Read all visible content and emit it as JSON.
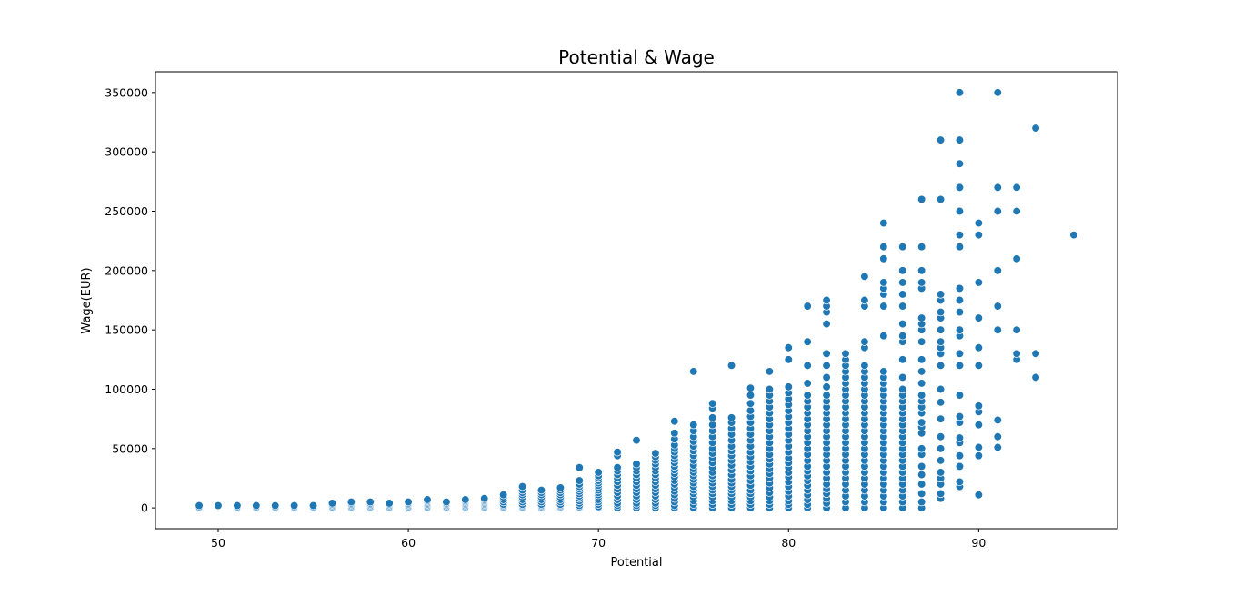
{
  "chart_data": {
    "type": "scatter",
    "title": "Potential & Wage",
    "xlabel": "Potential",
    "ylabel": "Wage(EUR)",
    "xlim": [
      46.7,
      97.3
    ],
    "ylim": [
      -17500,
      367500
    ],
    "xticks": [
      50,
      60,
      70,
      80,
      90
    ],
    "yticks": [
      0,
      50000,
      100000,
      150000,
      200000,
      250000,
      300000,
      350000
    ],
    "grid": false,
    "marker_color": "#1f77b4",
    "marker_edge_color": "#ffffff",
    "columns": [
      {
        "x": 49,
        "y": [
          0,
          1000,
          2000
        ]
      },
      {
        "x": 50,
        "y": [
          2000
        ]
      },
      {
        "x": 51,
        "y": [
          0,
          1000,
          2000
        ]
      },
      {
        "x": 52,
        "y": [
          0,
          1000,
          2000
        ]
      },
      {
        "x": 53,
        "y": [
          0,
          1000,
          2000
        ]
      },
      {
        "x": 54,
        "y": [
          0,
          1000,
          2000
        ]
      },
      {
        "x": 55,
        "y": [
          0,
          1000,
          2000
        ]
      },
      {
        "x": 56,
        "y": [
          0,
          1000,
          2000,
          3000,
          4000
        ]
      },
      {
        "x": 57,
        "y": [
          0,
          1000,
          2000,
          3000,
          4000,
          5000
        ]
      },
      {
        "x": 58,
        "y": [
          0,
          1000,
          2000,
          3000,
          4000,
          5000
        ]
      },
      {
        "x": 59,
        "y": [
          0,
          1000,
          2000,
          3000,
          4000
        ]
      },
      {
        "x": 60,
        "y": [
          0,
          1000,
          2000,
          3000,
          4000,
          5000
        ]
      },
      {
        "x": 61,
        "y": [
          0,
          1000,
          2000,
          3000,
          4000,
          5000,
          6000,
          7000
        ]
      },
      {
        "x": 62,
        "y": [
          0,
          1000,
          2000,
          3000,
          4000,
          5000
        ]
      },
      {
        "x": 63,
        "y": [
          0,
          1000,
          2000,
          3000,
          4000,
          5000,
          6000,
          7000
        ]
      },
      {
        "x": 64,
        "y": [
          0,
          1000,
          2000,
          3000,
          4000,
          5000,
          6000,
          7000,
          8000
        ]
      },
      {
        "x": 65,
        "y": [
          0,
          1000,
          2000,
          3000,
          5000,
          7000,
          9000,
          11000
        ]
      },
      {
        "x": 66,
        "y": [
          0,
          1000,
          2000,
          3000,
          5000,
          7000,
          9000,
          11000,
          13000,
          15000,
          18000
        ]
      },
      {
        "x": 67,
        "y": [
          0,
          1000,
          2000,
          3000,
          5000,
          7000,
          9000,
          11000,
          13000,
          15000
        ]
      },
      {
        "x": 68,
        "y": [
          0,
          1000,
          2000,
          3000,
          5000,
          7000,
          9000,
          11000,
          13000,
          15000,
          17000
        ]
      },
      {
        "x": 69,
        "y": [
          0,
          1000,
          2000,
          4000,
          6000,
          8000,
          10000,
          12000,
          14000,
          16000,
          18000,
          20000,
          23000,
          34000
        ]
      },
      {
        "x": 70,
        "y": [
          0,
          1000,
          3000,
          5000,
          7000,
          9000,
          11000,
          13000,
          15000,
          17000,
          19000,
          21000,
          23000,
          25000,
          27000,
          30000
        ]
      },
      {
        "x": 71,
        "y": [
          0,
          2000,
          4000,
          7000,
          10000,
          13000,
          16000,
          19000,
          22000,
          25000,
          28000,
          31000,
          34000,
          44000,
          47000
        ]
      },
      {
        "x": 72,
        "y": [
          0,
          2000,
          4000,
          7000,
          10000,
          13000,
          16000,
          19000,
          22000,
          25000,
          28000,
          31000,
          34000,
          37000,
          57000
        ]
      },
      {
        "x": 73,
        "y": [
          0,
          2000,
          4000,
          7000,
          10000,
          13000,
          16000,
          19000,
          22000,
          25000,
          28000,
          31000,
          34000,
          37000,
          40000,
          43000,
          46000
        ]
      },
      {
        "x": 74,
        "y": [
          0,
          2000,
          5000,
          8000,
          11000,
          14000,
          17000,
          20000,
          23000,
          26000,
          29000,
          32000,
          35000,
          38000,
          41000,
          44000,
          47000,
          50000,
          53000,
          58000,
          63000,
          73000
        ]
      },
      {
        "x": 75,
        "y": [
          0,
          3000,
          6000,
          9000,
          12000,
          15000,
          18000,
          21000,
          24000,
          27000,
          30000,
          33000,
          36000,
          40000,
          44000,
          48000,
          52000,
          56000,
          60000,
          65000,
          70000,
          115000
        ]
      },
      {
        "x": 76,
        "y": [
          0,
          3000,
          6000,
          9000,
          12000,
          15000,
          18000,
          21000,
          24000,
          27000,
          30000,
          34000,
          38000,
          42000,
          46000,
          50000,
          55000,
          60000,
          65000,
          70000,
          76000,
          84000,
          88000
        ]
      },
      {
        "x": 77,
        "y": [
          0,
          3000,
          6000,
          9000,
          12000,
          15000,
          18000,
          21000,
          24000,
          28000,
          32000,
          36000,
          40000,
          44000,
          48000,
          52000,
          57000,
          62000,
          67000,
          72000,
          76000,
          120000
        ]
      },
      {
        "x": 78,
        "y": [
          0,
          3000,
          6000,
          9000,
          12000,
          15000,
          19000,
          23000,
          27000,
          31000,
          35000,
          39000,
          43000,
          47000,
          52000,
          57000,
          62000,
          67000,
          72000,
          77000,
          82000,
          88000,
          95000,
          101000
        ]
      },
      {
        "x": 79,
        "y": [
          0,
          3000,
          6000,
          9000,
          13000,
          17000,
          21000,
          25000,
          29000,
          33000,
          37000,
          41000,
          45000,
          50000,
          55000,
          60000,
          65000,
          70000,
          75000,
          80000,
          85000,
          90000,
          95000,
          100000,
          115000
        ]
      },
      {
        "x": 80,
        "y": [
          0,
          3000,
          6000,
          10000,
          14000,
          18000,
          22000,
          26000,
          30000,
          34000,
          38000,
          42000,
          47000,
          52000,
          57000,
          62000,
          67000,
          72000,
          77000,
          82000,
          87000,
          92000,
          97000,
          102000,
          125000,
          135000
        ]
      },
      {
        "x": 81,
        "y": [
          0,
          3000,
          7000,
          11000,
          15000,
          19000,
          23000,
          27000,
          31000,
          35000,
          40000,
          45000,
          50000,
          55000,
          60000,
          65000,
          70000,
          75000,
          80000,
          85000,
          90000,
          95000,
          105000,
          120000,
          140000,
          170000
        ]
      },
      {
        "x": 82,
        "y": [
          0,
          4000,
          8000,
          12000,
          16000,
          20000,
          25000,
          30000,
          35000,
          40000,
          45000,
          50000,
          55000,
          60000,
          65000,
          70000,
          75000,
          80000,
          85000,
          90000,
          95000,
          102000,
          110000,
          120000,
          130000,
          155000,
          165000,
          170000,
          175000
        ]
      },
      {
        "x": 83,
        "y": [
          0,
          5000,
          10000,
          15000,
          20000,
          25000,
          30000,
          35000,
          40000,
          45000,
          50000,
          55000,
          60000,
          65000,
          70000,
          75000,
          80000,
          85000,
          90000,
          95000,
          100000,
          105000,
          110000,
          115000,
          120000,
          125000,
          130000
        ]
      },
      {
        "x": 84,
        "y": [
          0,
          5000,
          10000,
          15000,
          20000,
          25000,
          30000,
          35000,
          40000,
          45000,
          50000,
          55000,
          60000,
          65000,
          70000,
          75000,
          80000,
          85000,
          90000,
          95000,
          100000,
          105000,
          110000,
          115000,
          120000,
          135000,
          140000,
          170000,
          175000,
          195000
        ]
      },
      {
        "x": 85,
        "y": [
          0,
          5000,
          10000,
          15000,
          20000,
          25000,
          30000,
          35000,
          40000,
          45000,
          50000,
          55000,
          60000,
          65000,
          70000,
          75000,
          80000,
          85000,
          90000,
          95000,
          100000,
          105000,
          110000,
          115000,
          145000,
          170000,
          180000,
          185000,
          190000,
          210000,
          220000,
          240000
        ]
      },
      {
        "x": 86,
        "y": [
          0,
          5000,
          10000,
          15000,
          20000,
          25000,
          30000,
          35000,
          40000,
          45000,
          50000,
          55000,
          60000,
          65000,
          70000,
          75000,
          80000,
          85000,
          90000,
          95000,
          100000,
          110000,
          125000,
          140000,
          145000,
          155000,
          170000,
          180000,
          190000,
          200000,
          220000
        ]
      },
      {
        "x": 87,
        "y": [
          0,
          5000,
          12000,
          20000,
          28000,
          35000,
          45000,
          50000,
          63000,
          68000,
          72000,
          80000,
          85000,
          90000,
          95000,
          105000,
          115000,
          125000,
          140000,
          150000,
          155000,
          160000,
          185000,
          190000,
          200000,
          220000,
          260000
        ]
      },
      {
        "x": 88,
        "y": [
          8000,
          12000,
          20000,
          25000,
          30000,
          40000,
          50000,
          60000,
          75000,
          89000,
          100000,
          120000,
          130000,
          135000,
          140000,
          150000,
          160000,
          165000,
          175000,
          180000,
          260000,
          310000
        ]
      },
      {
        "x": 89,
        "y": [
          18000,
          22000,
          35000,
          44000,
          55000,
          59000,
          72000,
          77000,
          95000,
          120000,
          130000,
          145000,
          150000,
          165000,
          175000,
          185000,
          220000,
          230000,
          250000,
          270000,
          290000,
          310000,
          350000
        ]
      },
      {
        "x": 90,
        "y": [
          11000,
          44000,
          51000,
          70000,
          81000,
          86000,
          120000,
          135000,
          160000,
          190000,
          230000,
          240000
        ]
      },
      {
        "x": 91,
        "y": [
          51000,
          60000,
          74000,
          150000,
          170000,
          200000,
          250000,
          270000,
          350000
        ]
      },
      {
        "x": 92,
        "y": [
          125000,
          130000,
          150000,
          210000,
          250000,
          270000
        ]
      },
      {
        "x": 93,
        "y": [
          110000,
          130000,
          320000
        ]
      },
      {
        "x": 95,
        "y": [
          230000
        ]
      }
    ]
  }
}
